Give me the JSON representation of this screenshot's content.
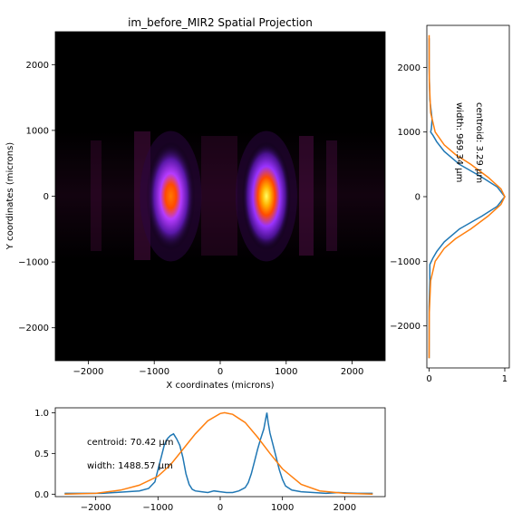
{
  "chart_data": [
    {
      "type": "heatmap",
      "title": "im_before_MIR2 Spatial Projection",
      "xlabel": "X coordinates (microns)",
      "ylabel": "Y coordinates (microns)",
      "xlim": [
        -2500,
        2500
      ],
      "ylim": [
        -2500,
        2500
      ],
      "xticks": [
        -2000,
        -1000,
        0,
        1000,
        2000
      ],
      "yticks": [
        -2000,
        -1000,
        0,
        1000,
        2000
      ],
      "colormap": "gnuplot2",
      "spots": [
        {
          "x": -750,
          "y": 0,
          "intensity": 0.72
        },
        {
          "x": 700,
          "y": 0,
          "intensity": 1.0
        }
      ]
    },
    {
      "type": "line",
      "orientation": "vertical",
      "xlim": [
        0,
        1
      ],
      "ylim": [
        -2650,
        2650
      ],
      "xticks": [
        0,
        1
      ],
      "yticks": [
        -2000,
        -1000,
        0,
        1000,
        2000
      ],
      "annotations": [
        "centroid: 3.29 µm",
        "width: 969.34 µm"
      ],
      "series": [
        {
          "color": "#1f77b4",
          "x": [
            0,
            0,
            0.01,
            0.01,
            0.05,
            0.1,
            0.2,
            0.4,
            0.7,
            0.9,
            1.0,
            0.9,
            0.7,
            0.4,
            0.2,
            0.1,
            0.05,
            0.02,
            0.03,
            0.04,
            0.01,
            0.0,
            0.0
          ],
          "y": [
            -2500,
            -1700,
            -1300,
            -1050,
            -950,
            -850,
            -700,
            -500,
            -300,
            -150,
            0,
            150,
            300,
            500,
            700,
            850,
            950,
            1000,
            1050,
            1200,
            1500,
            2000,
            2450
          ]
        },
        {
          "color": "#ff7f0e",
          "x": [
            0,
            0.002,
            0.02,
            0.08,
            0.2,
            0.35,
            0.55,
            0.78,
            0.95,
            1.0,
            0.95,
            0.78,
            0.55,
            0.35,
            0.2,
            0.08,
            0.02,
            0.002,
            0
          ],
          "y": [
            -2500,
            -1800,
            -1300,
            -1000,
            -800,
            -650,
            -500,
            -300,
            -120,
            0,
            120,
            300,
            500,
            650,
            800,
            1000,
            1300,
            1800,
            2500
          ]
        }
      ]
    },
    {
      "type": "line",
      "xlim": [
        -2650,
        2650
      ],
      "ylim": [
        -0.03,
        1.06
      ],
      "xticks": [
        -2000,
        -1000,
        0,
        1000,
        2000
      ],
      "yticks": [
        0.0,
        0.5,
        1.0
      ],
      "annotations": [
        "centroid: 70.42 µm",
        "width: 1488.57 µm"
      ],
      "series": [
        {
          "color": "#1f77b4",
          "x": [
            -2500,
            -2200,
            -1900,
            -1700,
            -1500,
            -1300,
            -1150,
            -1050,
            -1000,
            -950,
            -900,
            -850,
            -800,
            -750,
            -700,
            -650,
            -600,
            -550,
            -500,
            -450,
            -400,
            -300,
            -200,
            -100,
            0,
            100,
            200,
            300,
            400,
            450,
            500,
            550,
            600,
            650,
            700,
            730,
            750,
            770,
            800,
            850,
            900,
            950,
            1000,
            1050,
            1150,
            1300,
            1500,
            1700,
            1900,
            2200,
            2450
          ],
          "y": [
            0.01,
            0.01,
            0.01,
            0.02,
            0.03,
            0.04,
            0.07,
            0.15,
            0.3,
            0.45,
            0.6,
            0.68,
            0.72,
            0.74,
            0.68,
            0.6,
            0.45,
            0.25,
            0.12,
            0.06,
            0.04,
            0.03,
            0.02,
            0.04,
            0.03,
            0.02,
            0.02,
            0.04,
            0.08,
            0.14,
            0.25,
            0.4,
            0.55,
            0.68,
            0.8,
            0.92,
            1.0,
            0.88,
            0.75,
            0.6,
            0.45,
            0.3,
            0.18,
            0.1,
            0.05,
            0.03,
            0.02,
            0.01,
            0.02,
            0.01,
            0.01
          ]
        },
        {
          "color": "#ff7f0e",
          "x": [
            -2500,
            -2000,
            -1600,
            -1300,
            -1000,
            -800,
            -600,
            -400,
            -200,
            0,
            70,
            200,
            400,
            600,
            800,
            1000,
            1300,
            1600,
            2000,
            2450
          ],
          "y": [
            0.0,
            0.01,
            0.05,
            0.11,
            0.22,
            0.36,
            0.55,
            0.74,
            0.9,
            0.99,
            1.0,
            0.98,
            0.88,
            0.7,
            0.5,
            0.31,
            0.12,
            0.04,
            0.01,
            0.0
          ]
        }
      ]
    }
  ]
}
